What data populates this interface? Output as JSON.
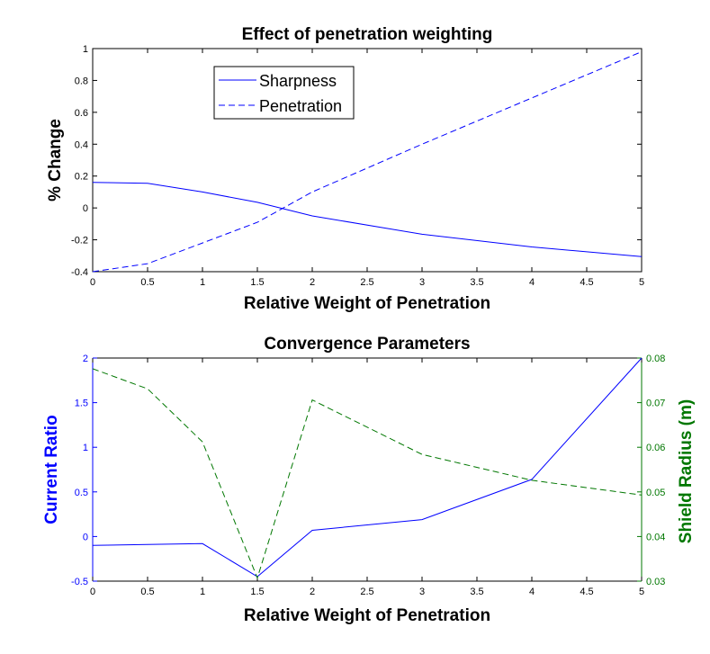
{
  "chart_data": [
    {
      "type": "line",
      "title": "Effect of penetration weighting",
      "xlabel": "Relative Weight of Penetration",
      "ylabel": "% Change",
      "xlim": [
        0,
        5
      ],
      "ylim": [
        -0.4,
        1
      ],
      "x_ticks": [
        "0",
        "0.5",
        "1",
        "1.5",
        "2",
        "2.5",
        "3",
        "3.5",
        "4",
        "4.5",
        "5"
      ],
      "y_ticks": [
        "-0.4",
        "-0.2",
        "0",
        "0.2",
        "0.4",
        "0.6",
        "0.8",
        "1"
      ],
      "grid": false,
      "legend_position": "top-left",
      "series": [
        {
          "name": "Sharpness",
          "style": "solid",
          "color": "#0000ff",
          "x": [
            0,
            0.5,
            1,
            1.5,
            2,
            3,
            4,
            5
          ],
          "y": [
            0.16,
            0.155,
            0.1,
            0.035,
            -0.05,
            -0.165,
            -0.245,
            -0.305
          ]
        },
        {
          "name": "Penetration",
          "style": "dashed",
          "color": "#0000ff",
          "x": [
            0,
            0.5,
            1,
            1.5,
            2,
            3,
            4,
            5
          ],
          "y": [
            -0.4,
            -0.35,
            -0.22,
            -0.09,
            0.1,
            0.4,
            0.69,
            0.98
          ]
        }
      ]
    },
    {
      "type": "line",
      "title": "Convergence Parameters",
      "xlabel": "Relative Weight of Penetration",
      "ylabel": "Current Ratio",
      "ylabel_right": "Shield Radius (m)",
      "xlim": [
        0,
        5
      ],
      "ylim": [
        -0.5,
        2
      ],
      "ylim_right": [
        0.03,
        0.08
      ],
      "x_ticks": [
        "0",
        "0.5",
        "1",
        "1.5",
        "2",
        "2.5",
        "3",
        "3.5",
        "4",
        "4.5",
        "5"
      ],
      "y_ticks": [
        "-0.5",
        "0",
        "0.5",
        "1",
        "1.5",
        "2"
      ],
      "y_ticks_right": [
        "0.03",
        "0.04",
        "0.05",
        "0.06",
        "0.07",
        "0.08"
      ],
      "grid": false,
      "series": [
        {
          "axis": "left",
          "style": "solid",
          "color": "#0000ff",
          "x": [
            0,
            0.5,
            1,
            1.5,
            2,
            3,
            4,
            5
          ],
          "y": [
            -0.1,
            -0.09,
            -0.08,
            -0.45,
            0.07,
            0.19,
            0.64,
            2.0
          ]
        },
        {
          "axis": "right",
          "style": "dashed",
          "color": "#007700",
          "x": [
            0,
            0.5,
            1,
            1.5,
            2,
            3,
            4,
            5
          ],
          "y": [
            0.0776,
            0.0731,
            0.0612,
            0.0307,
            0.0706,
            0.0584,
            0.0526,
            0.0493
          ]
        }
      ]
    }
  ],
  "colors": {
    "blue": "#0000ff",
    "green": "#007700"
  }
}
